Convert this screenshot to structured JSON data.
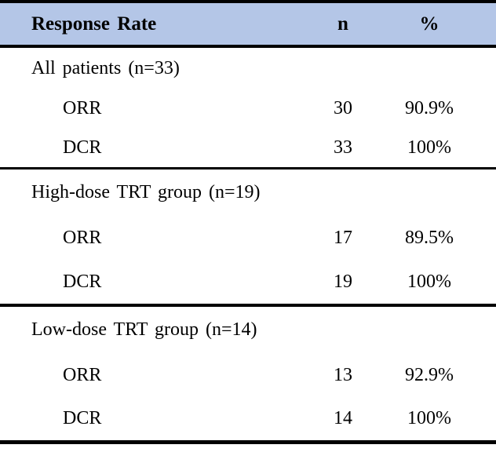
{
  "table": {
    "header": {
      "label": "Response Rate",
      "col_n": "n",
      "col_pct": "%"
    },
    "sections": [
      {
        "label": "All patients (n=33)",
        "rows": [
          {
            "name": "ORR",
            "n": "30",
            "pct": "90.9%"
          },
          {
            "name": "DCR",
            "n": "33",
            "pct": "100%"
          }
        ]
      },
      {
        "label": "High-dose TRT group (n=19)",
        "rows": [
          {
            "name": "ORR",
            "n": "17",
            "pct": "89.5%"
          },
          {
            "name": "DCR",
            "n": "19",
            "pct": "100%"
          }
        ]
      },
      {
        "label": "Low-dose TRT group (n=14)",
        "rows": [
          {
            "name": "ORR",
            "n": "13",
            "pct": "92.9%"
          },
          {
            "name": "DCR",
            "n": "14",
            "pct": "100%"
          }
        ]
      }
    ],
    "colors": {
      "header_bg": "#b4c6e7",
      "border": "#000000",
      "text": "#000000"
    }
  }
}
